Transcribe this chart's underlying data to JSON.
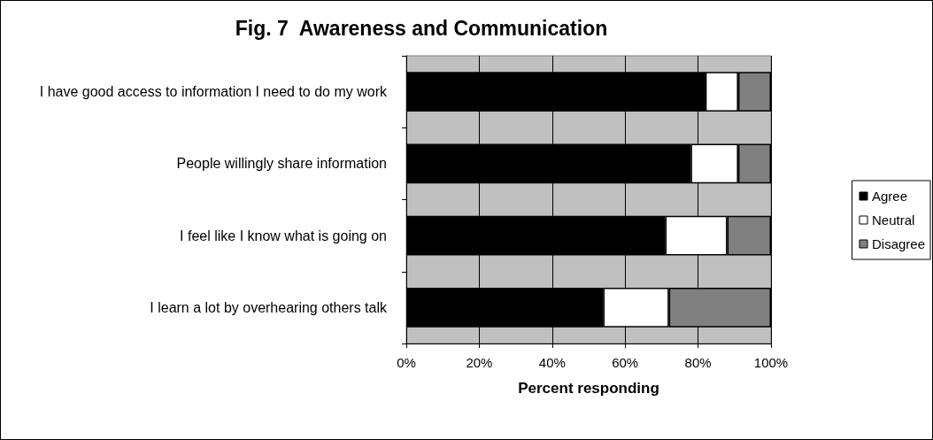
{
  "chart_data": {
    "type": "bar",
    "title": "Fig. 7  Awareness and Communication",
    "xlabel": "Percent responding",
    "orientation": "horizontal",
    "stacked": true,
    "grid": "x",
    "legend": "right",
    "categories": [
      "I have good access to information I need to do my work",
      "People willingly share information",
      "I feel like I know what is going on",
      "I learn a lot by overhearing others talk"
    ],
    "series": [
      {
        "name": "Agree",
        "color": "#000000",
        "values": [
          82,
          78,
          71,
          54
        ]
      },
      {
        "name": "Neutral",
        "color": "#ffffff",
        "values": [
          9,
          13,
          17,
          18
        ]
      },
      {
        "name": "Disagree",
        "color": "#808080",
        "values": [
          9,
          9,
          12,
          28
        ]
      }
    ],
    "xlim": [
      0,
      100
    ],
    "xticks": [
      {
        "value": 0,
        "label": "0%"
      },
      {
        "value": 20,
        "label": "20%"
      },
      {
        "value": 40,
        "label": "40%"
      },
      {
        "value": 60,
        "label": "60%"
      },
      {
        "value": 80,
        "label": "80%"
      },
      {
        "value": 100,
        "label": "100%"
      }
    ]
  }
}
